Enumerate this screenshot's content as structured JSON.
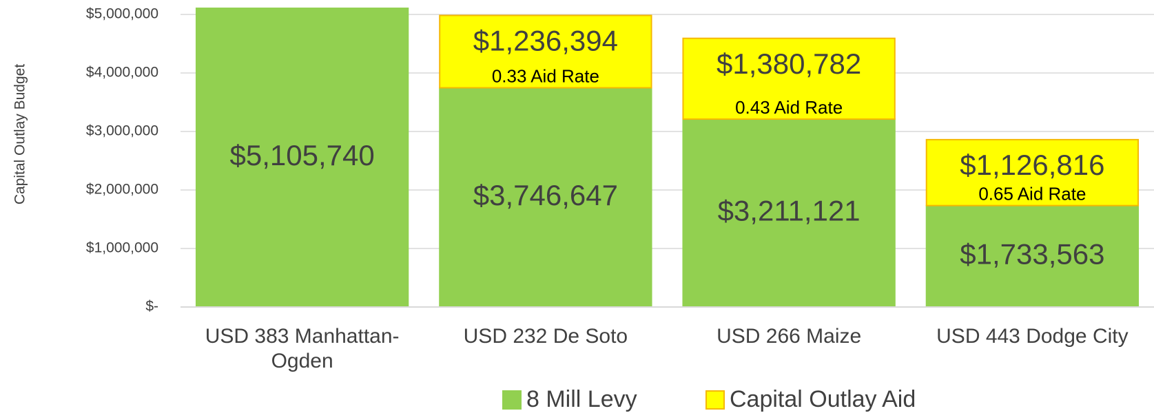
{
  "chart_data": {
    "type": "stacked_bar",
    "y_label": "Capital Outlay Budget",
    "categories": [
      "USD 383 Manhattan-Ogden",
      "USD 232 De Soto",
      "USD 266 Maize",
      "USD 443 Dodge City"
    ],
    "series": [
      {
        "name": "8 Mill Levy",
        "color": "#92d050",
        "border": "#92d050",
        "values": [
          5105740,
          3746647,
          3211121,
          1733563
        ],
        "value_labels": [
          "$5,105,740",
          "$3,746,647",
          "$3,211,121",
          "$1,733,563"
        ]
      },
      {
        "name": "Capital Outlay Aid",
        "color": "#ffff00",
        "border": "#f5b800",
        "values": [
          null,
          1236394,
          1380782,
          1126816
        ],
        "value_labels": [
          null,
          "$1,236,394",
          "$1,380,782",
          "$1,126,816"
        ]
      }
    ],
    "annotations": [
      null,
      "0.33 Aid Rate",
      "0.43 Aid Rate",
      "0.65 Aid Rate"
    ],
    "ylim": [
      0,
      5000000
    ],
    "yticks": [
      {
        "value": 0,
        "label": "$-"
      },
      {
        "value": 1000000,
        "label": "$1,000,000"
      },
      {
        "value": 2000000,
        "label": "$2,000,000"
      },
      {
        "value": 3000000,
        "label": "$3,000,000"
      },
      {
        "value": 4000000,
        "label": "$4,000,000"
      },
      {
        "value": 5000000,
        "label": "$5,000,000"
      }
    ],
    "grid": true
  }
}
